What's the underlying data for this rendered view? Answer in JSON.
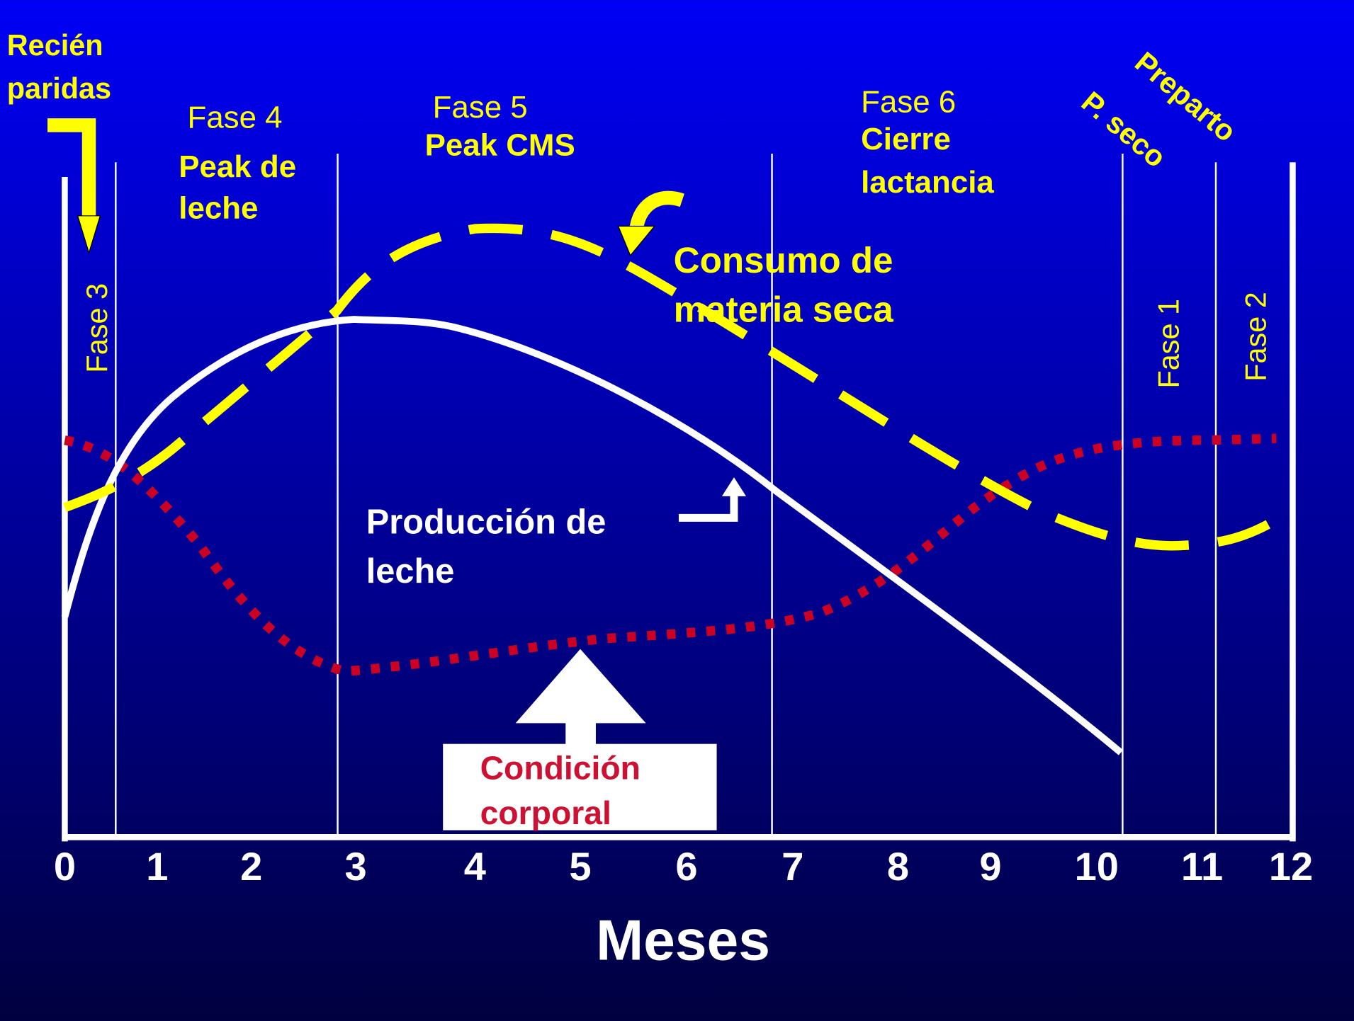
{
  "header": {
    "newborn": [
      "Recién",
      "paridas"
    ]
  },
  "phases": {
    "fase3": "Fase 3",
    "fase4": {
      "label": "Fase 4",
      "desc": [
        "Peak de",
        "leche"
      ]
    },
    "fase5": {
      "label": "Fase 5",
      "desc": [
        "Peak CMS"
      ]
    },
    "fase6": {
      "label": "Fase 6",
      "desc": [
        "Cierre",
        "lactancia"
      ]
    },
    "dry": "P. seco",
    "prepartum": "Preparto",
    "fase1": "Fase 1",
    "fase2": "Fase 2"
  },
  "curves": {
    "intake": [
      "Consumo de",
      "materia seca"
    ],
    "milk": [
      "Producción de",
      "leche"
    ],
    "body": [
      "Condición",
      "corporal"
    ]
  },
  "axis": {
    "ticks": [
      0,
      1,
      2,
      3,
      4,
      5,
      6,
      7,
      8,
      9,
      10,
      11,
      12
    ],
    "label": "Meses"
  }
}
